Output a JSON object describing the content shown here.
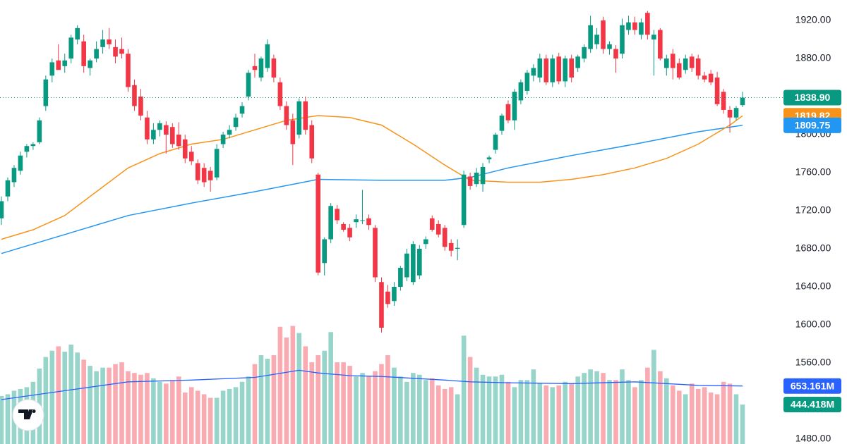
{
  "chart_data": {
    "type": "candlestick",
    "up_color": "#089981",
    "down_color": "#f23645",
    "ylim": [
      1474.8,
      1941.5
    ],
    "yticks": [
      {
        "value": 1480,
        "label": "1480.00"
      },
      {
        "value": 1520,
        "label": "1520.00"
      },
      {
        "value": 1560,
        "label": "1560.00"
      },
      {
        "value": 1600,
        "label": "1600.00"
      },
      {
        "value": 1640,
        "label": "1640.00"
      },
      {
        "value": 1680,
        "label": "1680.00"
      },
      {
        "value": 1720,
        "label": "1720.00"
      },
      {
        "value": 1760,
        "label": "1760.00"
      },
      {
        "value": 1800,
        "label": "1800.00"
      },
      {
        "value": 1840,
        "label": "1840.00"
      },
      {
        "value": 1880,
        "label": "1880.00"
      },
      {
        "value": 1920,
        "label": "1920.00"
      }
    ],
    "candles": [
      [
        1712,
        1735,
        1705,
        1730
      ],
      [
        1735,
        1755,
        1730,
        1752
      ],
      [
        1750,
        1768,
        1745,
        1765
      ],
      [
        1762,
        1782,
        1758,
        1778
      ],
      [
        1782,
        1790,
        1776,
        1788
      ],
      [
        1788,
        1792,
        1784,
        1790
      ],
      [
        1792,
        1818,
        1790,
        1815
      ],
      [
        1830,
        1862,
        1825,
        1858
      ],
      [
        1862,
        1880,
        1855,
        1876
      ],
      [
        1878,
        1895,
        1870,
        1868
      ],
      [
        1872,
        1885,
        1865,
        1878
      ],
      [
        1880,
        1905,
        1875,
        1902
      ],
      [
        1900,
        1915,
        1895,
        1912
      ],
      [
        1898,
        1905,
        1865,
        1872
      ],
      [
        1870,
        1880,
        1862,
        1878
      ],
      [
        1880,
        1898,
        1876,
        1890
      ],
      [
        1892,
        1910,
        1885,
        1900
      ],
      [
        1900,
        1912,
        1890,
        1895
      ],
      [
        1892,
        1900,
        1875,
        1882
      ],
      [
        1890,
        1902,
        1880,
        1885
      ],
      [
        1885,
        1890,
        1845,
        1850
      ],
      [
        1852,
        1858,
        1825,
        1830
      ],
      [
        1840,
        1848,
        1815,
        1820
      ],
      [
        1818,
        1825,
        1790,
        1795
      ],
      [
        1795,
        1812,
        1790,
        1805
      ],
      [
        1805,
        1815,
        1798,
        1812
      ],
      [
        1810,
        1814,
        1780,
        1800
      ],
      [
        1808,
        1812,
        1786,
        1790
      ],
      [
        1800,
        1813,
        1784,
        1788
      ],
      [
        1795,
        1800,
        1770,
        1775
      ],
      [
        1782,
        1788,
        1768,
        1772
      ],
      [
        1770,
        1774,
        1748,
        1752
      ],
      [
        1765,
        1770,
        1745,
        1750
      ],
      [
        1762,
        1766,
        1740,
        1752
      ],
      [
        1755,
        1790,
        1752,
        1785
      ],
      [
        1790,
        1803,
        1786,
        1800
      ],
      [
        1800,
        1810,
        1796,
        1805
      ],
      [
        1808,
        1822,
        1804,
        1818
      ],
      [
        1822,
        1834,
        1818,
        1830
      ],
      [
        1840,
        1868,
        1836,
        1865
      ],
      [
        1872,
        1885,
        1860,
        1868
      ],
      [
        1860,
        1882,
        1856,
        1880
      ],
      [
        1870,
        1900,
        1866,
        1895
      ],
      [
        1880,
        1884,
        1855,
        1860
      ],
      [
        1855,
        1860,
        1826,
        1830
      ],
      [
        1830,
        1835,
        1805,
        1810
      ],
      [
        1815,
        1822,
        1768,
        1790
      ],
      [
        1800,
        1838,
        1796,
        1835
      ],
      [
        1835,
        1840,
        1800,
        1805
      ],
      [
        1810,
        1815,
        1770,
        1775
      ],
      [
        1758,
        1760,
        1652,
        1655
      ],
      [
        1665,
        1692,
        1652,
        1690
      ],
      [
        1690,
        1728,
        1686,
        1725
      ],
      [
        1722,
        1726,
        1706,
        1710
      ],
      [
        1706,
        1708,
        1698,
        1700
      ],
      [
        1702,
        1706,
        1688,
        1692
      ],
      [
        1708,
        1716,
        1702,
        1711
      ],
      [
        1710,
        1742,
        1706,
        1710
      ],
      [
        1712,
        1716,
        1700,
        1705
      ],
      [
        1702,
        1705,
        1645,
        1650
      ],
      [
        1645,
        1650,
        1592,
        1597
      ],
      [
        1635,
        1642,
        1618,
        1622
      ],
      [
        1625,
        1645,
        1620,
        1640
      ],
      [
        1640,
        1662,
        1636,
        1660
      ],
      [
        1650,
        1680,
        1646,
        1675
      ],
      [
        1645,
        1688,
        1642,
        1685
      ],
      [
        1652,
        1684,
        1648,
        1680
      ],
      [
        1685,
        1693,
        1680,
        1690
      ],
      [
        1712,
        1715,
        1698,
        1700
      ],
      [
        1706,
        1710,
        1692,
        1695
      ],
      [
        1702,
        1705,
        1678,
        1682
      ],
      [
        1686,
        1690,
        1672,
        1678
      ],
      [
        1680,
        1690,
        1668,
        1681
      ],
      [
        1705,
        1762,
        1702,
        1758
      ],
      [
        1756,
        1760,
        1742,
        1746
      ],
      [
        1748,
        1765,
        1745,
        1760
      ],
      [
        1748,
        1770,
        1740,
        1766
      ],
      [
        1774,
        1778,
        1770,
        1776
      ],
      [
        1784,
        1802,
        1780,
        1800
      ],
      [
        1804,
        1822,
        1800,
        1820
      ],
      [
        1832,
        1836,
        1812,
        1815
      ],
      [
        1815,
        1848,
        1805,
        1845
      ],
      [
        1836,
        1858,
        1832,
        1855
      ],
      [
        1846,
        1868,
        1842,
        1865
      ],
      [
        1862,
        1874,
        1856,
        1870
      ],
      [
        1860,
        1885,
        1855,
        1880
      ],
      [
        1880,
        1884,
        1852,
        1855
      ],
      [
        1855,
        1884,
        1850,
        1880
      ],
      [
        1882,
        1886,
        1853,
        1856
      ],
      [
        1856,
        1883,
        1850,
        1880
      ],
      [
        1880,
        1884,
        1855,
        1860
      ],
      [
        1870,
        1884,
        1866,
        1882
      ],
      [
        1880,
        1895,
        1876,
        1892
      ],
      [
        1890,
        1925,
        1886,
        1915
      ],
      [
        1895,
        1912,
        1890,
        1905
      ],
      [
        1920,
        1924,
        1885,
        1890
      ],
      [
        1890,
        1898,
        1884,
        1895
      ],
      [
        1890,
        1894,
        1865,
        1880
      ],
      [
        1885,
        1922,
        1880,
        1915
      ],
      [
        1910,
        1925,
        1905,
        1918
      ],
      [
        1918,
        1924,
        1905,
        1910
      ],
      [
        1905,
        1922,
        1900,
        1918
      ],
      [
        1928,
        1930,
        1900,
        1905
      ],
      [
        1900,
        1910,
        1862,
        1905
      ],
      [
        1910,
        1912,
        1878,
        1880
      ],
      [
        1870,
        1884,
        1862,
        1880
      ],
      [
        1885,
        1890,
        1858,
        1870
      ],
      [
        1875,
        1880,
        1858,
        1860
      ],
      [
        1868,
        1884,
        1864,
        1880
      ],
      [
        1882,
        1885,
        1866,
        1870
      ],
      [
        1880,
        1884,
        1858,
        1862
      ],
      [
        1862,
        1866,
        1855,
        1858
      ],
      [
        1864,
        1868,
        1852,
        1855
      ],
      [
        1860,
        1866,
        1830,
        1832
      ],
      [
        1845,
        1848,
        1822,
        1826
      ],
      [
        1826,
        1830,
        1802,
        1818
      ],
      [
        1818,
        1830,
        1815,
        1828
      ],
      [
        1831,
        1845,
        1829,
        1838.9
      ]
    ],
    "volume_ylim": [
      0,
      5000
    ],
    "volumes": [
      540,
      560,
      600,
      620,
      640,
      700,
      850,
      980,
      1050,
      1100,
      1040,
      1120,
      1030,
      950,
      880,
      820,
      860,
      860,
      900,
      920,
      820,
      800,
      780,
      800,
      740,
      700,
      680,
      720,
      760,
      580,
      640,
      600,
      560,
      520,
      520,
      600,
      620,
      640,
      700,
      760,
      900,
      1000,
      960,
      1000,
      1320,
      1200,
      1330,
      1250,
      1100,
      920,
      1000,
      1050,
      1260,
      920,
      920,
      880,
      760,
      800,
      760,
      820,
      900,
      1000,
      860,
      760,
      700,
      800,
      780,
      720,
      740,
      660,
      620,
      640,
      560,
      1220,
      980,
      860,
      780,
      760,
      760,
      780,
      700,
      640,
      720,
      720,
      840,
      680,
      660,
      640,
      660,
      700,
      680,
      760,
      800,
      840,
      820,
      800,
      720,
      720,
      840,
      720,
      640,
      720,
      860,
      1060,
      820,
      740,
      660,
      600,
      560,
      680,
      620,
      640,
      580,
      560,
      700,
      680,
      560,
      444.418
    ],
    "ma_fast": {
      "color": "#f7931a",
      "x": [
        0,
        5,
        10,
        15,
        20,
        25,
        30,
        35,
        40,
        45,
        50,
        55,
        60,
        65,
        70,
        74,
        80,
        85,
        90,
        95,
        100,
        105,
        110,
        115,
        117
      ],
      "values": [
        1690,
        1700,
        1715,
        1740,
        1765,
        1780,
        1790,
        1795,
        1805,
        1815,
        1820,
        1818,
        1810,
        1790,
        1768,
        1752,
        1750,
        1750,
        1753,
        1758,
        1765,
        1775,
        1790,
        1810,
        1819.82
      ]
    },
    "ma_slow": {
      "color": "#2196f3",
      "x": [
        0,
        10,
        20,
        30,
        40,
        50,
        60,
        70,
        74,
        80,
        90,
        100,
        110,
        117
      ],
      "values": [
        1675,
        1695,
        1715,
        1728,
        1740,
        1753,
        1752,
        1752,
        1755,
        1765,
        1778,
        1790,
        1803,
        1809.75
      ]
    },
    "volume_ma": {
      "color": "#2962ff",
      "x": [
        0,
        10,
        20,
        30,
        40,
        47,
        50,
        55,
        60,
        70,
        74,
        80,
        90,
        100,
        110,
        117
      ],
      "values": [
        500,
        600,
        700,
        720,
        750,
        830,
        800,
        770,
        760,
        720,
        700,
        690,
        680,
        700,
        660,
        653.161
      ]
    },
    "last_price": {
      "value": 1838.9,
      "label": "1838.90"
    },
    "ma_fast_last": {
      "value": 1819.82,
      "label": "1819.82"
    },
    "ma_slow_last": {
      "value": 1809.75,
      "label": "1809.75"
    },
    "volume_ma_last": {
      "value": 653.161,
      "label": "653.161M"
    },
    "volume_last": {
      "value": 444.418,
      "label": "444.418M"
    }
  }
}
